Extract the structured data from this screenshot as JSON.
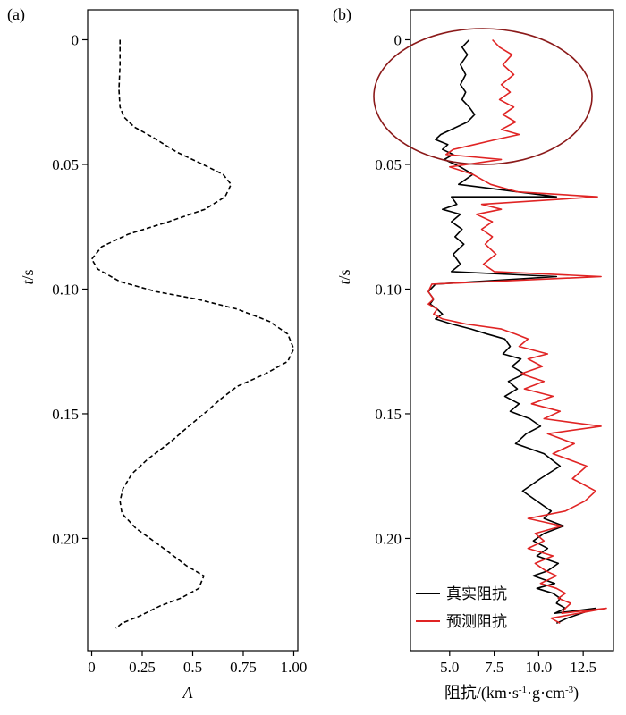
{
  "chart_data": [
    {
      "panel_label": "(a)",
      "type": "line",
      "title": "",
      "xlabel_italic": "A",
      "ylabel_italic": "t",
      "ylabel_unit": "/s",
      "xlim": [
        -0.02,
        1.02
      ],
      "ylim": [
        0.245,
        -0.012
      ],
      "x_ticks": [
        0,
        0.25,
        0.5,
        0.75,
        1.0
      ],
      "x_tick_labels": [
        "0",
        "0.25",
        "0.5",
        "0.75",
        "1.00"
      ],
      "y_ticks": [
        0,
        0.05,
        0.1,
        0.15,
        0.2
      ],
      "y_tick_labels": [
        "0",
        "0.05",
        "0.10",
        "0.15",
        "0.20"
      ],
      "grid": false,
      "series": [
        {
          "style": "dashed",
          "color": "#000000",
          "x": [
            0.14,
            0.14,
            0.135,
            0.14,
            0.16,
            0.21,
            0.3,
            0.42,
            0.55,
            0.65,
            0.69,
            0.66,
            0.56,
            0.38,
            0.18,
            0.05,
            0.0,
            0.03,
            0.14,
            0.32,
            0.52,
            0.72,
            0.88,
            0.97,
            1.0,
            0.97,
            0.86,
            0.72,
            0.64,
            0.57,
            0.48,
            0.38,
            0.28,
            0.2,
            0.155,
            0.14,
            0.15,
            0.22,
            0.34,
            0.47,
            0.555,
            0.53,
            0.44,
            0.34,
            0.24,
            0.15,
            0.12
          ],
          "y": [
            0.0,
            0.01,
            0.02,
            0.027,
            0.031,
            0.035,
            0.039,
            0.045,
            0.05,
            0.054,
            0.058,
            0.063,
            0.068,
            0.073,
            0.078,
            0.083,
            0.088,
            0.092,
            0.097,
            0.101,
            0.104,
            0.108,
            0.113,
            0.118,
            0.124,
            0.129,
            0.134,
            0.139,
            0.144,
            0.149,
            0.155,
            0.162,
            0.168,
            0.174,
            0.18,
            0.185,
            0.19,
            0.196,
            0.203,
            0.211,
            0.215,
            0.22,
            0.224,
            0.227,
            0.231,
            0.234,
            0.236
          ]
        }
      ]
    },
    {
      "panel_label": "(b)",
      "type": "line",
      "title": "",
      "xlabel": "阻抗/(km·s",
      "xlabel_exp1": "-1",
      "xlabel_mid": "·g·cm",
      "xlabel_exp2": "-3",
      "xlabel_end": ")",
      "ylabel_italic": "t",
      "ylabel_unit": "/s",
      "xlim": [
        2.8,
        14.2
      ],
      "ylim": [
        0.245,
        -0.012
      ],
      "x_ticks": [
        5.0,
        7.5,
        10.0,
        12.5
      ],
      "x_tick_labels": [
        "5.0",
        "7.5",
        "10.0",
        "12.5"
      ],
      "y_ticks": [
        0,
        0.05,
        0.1,
        0.15,
        0.2
      ],
      "y_tick_labels": [
        "0",
        "0.05",
        "0.10",
        "0.15",
        "0.20"
      ],
      "grid": false,
      "legend": {
        "position": "lower-left",
        "entries": [
          "真实阻抗",
          "预测阻抗"
        ]
      },
      "series": [
        {
          "name": "真实阻抗",
          "color": "#000000",
          "x": [
            6.1,
            5.7,
            6.0,
            5.6,
            5.9,
            5.6,
            5.9,
            5.7,
            6.1,
            6.4,
            6.0,
            5.1,
            4.5,
            4.2,
            4.9,
            4.6,
            5.2,
            4.7,
            5.6,
            6.3,
            5.5,
            11.0,
            5.1,
            5.4,
            4.6,
            5.6,
            5.1,
            5.7,
            5.3,
            5.8,
            5.2,
            5.6,
            5.1,
            11.0,
            4.2,
            3.8,
            4.1,
            3.9,
            4.3,
            4.6,
            4.2,
            5.1,
            6.2,
            7.1,
            8.1,
            8.4,
            8.0,
            9.0,
            8.5,
            9.2,
            8.3,
            8.8,
            8.1,
            8.9,
            8.4,
            9.5,
            10.1,
            9.3,
            8.7,
            10.3,
            11.2,
            10.1,
            9.1,
            9.9,
            10.7,
            10.3,
            11.4,
            10.3,
            9.7,
            10.5,
            9.9,
            11.1,
            10.5,
            9.7,
            10.9,
            9.9,
            10.8,
            11.2,
            11.0,
            11.5,
            10.9,
            13.2,
            11.6,
            11.0
          ],
          "y": [
            0.0,
            0.003,
            0.006,
            0.01,
            0.014,
            0.018,
            0.021,
            0.024,
            0.027,
            0.03,
            0.033,
            0.036,
            0.038,
            0.04,
            0.042,
            0.044,
            0.046,
            0.048,
            0.051,
            0.054,
            0.058,
            0.063,
            0.063,
            0.066,
            0.068,
            0.07,
            0.073,
            0.076,
            0.079,
            0.082,
            0.086,
            0.09,
            0.093,
            0.095,
            0.098,
            0.101,
            0.104,
            0.106,
            0.108,
            0.11,
            0.112,
            0.114,
            0.116,
            0.118,
            0.12,
            0.123,
            0.126,
            0.128,
            0.131,
            0.134,
            0.137,
            0.14,
            0.143,
            0.146,
            0.149,
            0.152,
            0.155,
            0.158,
            0.162,
            0.166,
            0.171,
            0.176,
            0.181,
            0.185,
            0.189,
            0.192,
            0.195,
            0.198,
            0.201,
            0.204,
            0.207,
            0.21,
            0.213,
            0.215,
            0.218,
            0.22,
            0.222,
            0.224,
            0.226,
            0.228,
            0.23,
            0.228,
            0.232,
            0.234
          ]
        },
        {
          "name": "预测阻抗",
          "color": "#e02424",
          "x": [
            7.4,
            7.8,
            8.5,
            8.0,
            8.6,
            7.9,
            8.4,
            7.8,
            8.6,
            8.0,
            8.7,
            7.9,
            8.9,
            7.6,
            6.4,
            5.2,
            4.8,
            7.9,
            5.0,
            6.3,
            7.3,
            8.8,
            13.3,
            6.8,
            7.9,
            6.5,
            7.4,
            6.8,
            7.4,
            7.0,
            7.6,
            6.9,
            7.5,
            13.5,
            4.0,
            3.8,
            4.1,
            3.8,
            4.3,
            4.1,
            4.6,
            5.9,
            7.9,
            8.7,
            9.4,
            8.9,
            10.5,
            9.4,
            10.2,
            9.0,
            10.3,
            9.2,
            10.8,
            9.6,
            11.2,
            10.3,
            13.5,
            10.5,
            12.0,
            10.8,
            12.7,
            11.9,
            13.2,
            12.6,
            11.5,
            9.4,
            11.3,
            9.8,
            10.3,
            9.4,
            10.8,
            9.8,
            10.4,
            11.0,
            10.1,
            11.0,
            11.5,
            11.1,
            11.8,
            11.5,
            11.3,
            13.8,
            10.7,
            11.2
          ],
          "y": [
            0.0,
            0.003,
            0.006,
            0.01,
            0.014,
            0.018,
            0.021,
            0.024,
            0.027,
            0.03,
            0.033,
            0.036,
            0.038,
            0.04,
            0.042,
            0.044,
            0.046,
            0.048,
            0.051,
            0.054,
            0.058,
            0.061,
            0.063,
            0.066,
            0.068,
            0.07,
            0.073,
            0.076,
            0.079,
            0.082,
            0.086,
            0.09,
            0.093,
            0.095,
            0.098,
            0.101,
            0.104,
            0.106,
            0.108,
            0.11,
            0.112,
            0.114,
            0.116,
            0.118,
            0.12,
            0.123,
            0.126,
            0.128,
            0.131,
            0.134,
            0.137,
            0.14,
            0.143,
            0.146,
            0.149,
            0.152,
            0.155,
            0.158,
            0.162,
            0.166,
            0.171,
            0.176,
            0.181,
            0.185,
            0.189,
            0.192,
            0.195,
            0.198,
            0.201,
            0.204,
            0.207,
            0.21,
            0.213,
            0.215,
            0.218,
            0.22,
            0.222,
            0.224,
            0.226,
            0.228,
            0.23,
            0.228,
            0.232,
            0.234
          ]
        }
      ],
      "annotations": [
        {
          "type": "ellipse",
          "color": "#8b1a1a"
        }
      ]
    }
  ]
}
